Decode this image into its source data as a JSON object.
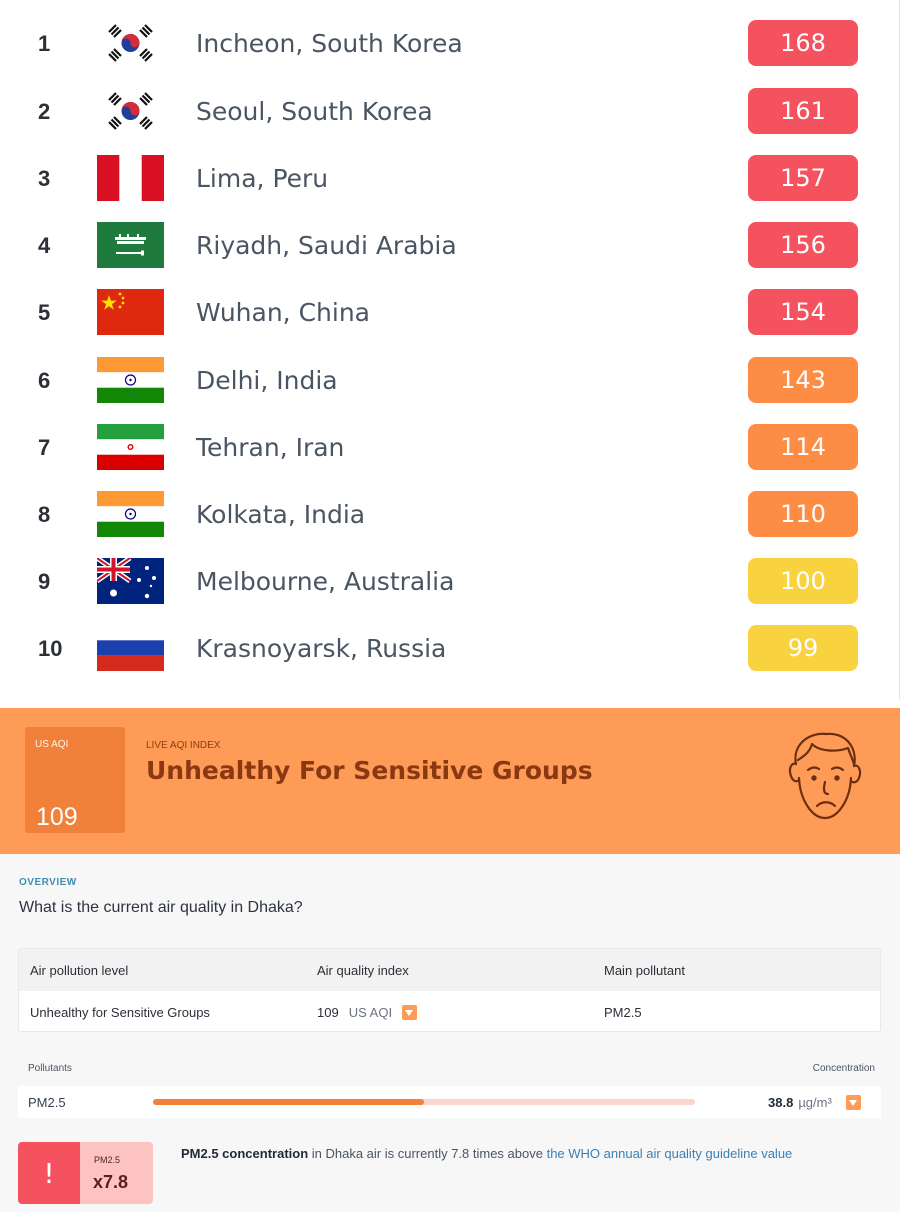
{
  "ranking": [
    {
      "rank": "1",
      "city": "Incheon, South Korea",
      "aqi": "168",
      "flag": "south-korea-flag",
      "color": "#f5525f"
    },
    {
      "rank": "2",
      "city": "Seoul, South Korea",
      "aqi": "161",
      "flag": "south-korea-flag",
      "color": "#f5525f"
    },
    {
      "rank": "3",
      "city": "Lima, Peru",
      "aqi": "157",
      "flag": "peru-flag",
      "color": "#f5525f"
    },
    {
      "rank": "4",
      "city": "Riyadh, Saudi Arabia",
      "aqi": "156",
      "flag": "saudi-arabia-flag",
      "color": "#f5525f"
    },
    {
      "rank": "5",
      "city": "Wuhan, China",
      "aqi": "154",
      "flag": "china-flag",
      "color": "#f5525f"
    },
    {
      "rank": "6",
      "city": "Delhi, India",
      "aqi": "143",
      "flag": "india-flag",
      "color": "#fd8c44"
    },
    {
      "rank": "7",
      "city": "Tehran, Iran",
      "aqi": "114",
      "flag": "iran-flag",
      "color": "#fd8c44"
    },
    {
      "rank": "8",
      "city": "Kolkata, India",
      "aqi": "110",
      "flag": "india-flag",
      "color": "#fd8c44"
    },
    {
      "rank": "9",
      "city": "Melbourne, Australia",
      "aqi": "100",
      "flag": "australia-flag",
      "color": "#f9d33f"
    },
    {
      "rank": "10",
      "city": "Krasnoyarsk, Russia",
      "aqi": "99",
      "flag": "russia-flag",
      "color": "#f9d33f"
    }
  ],
  "banner": {
    "aqi_label": "US AQI",
    "aqi_value": "109",
    "live_label": "LIVE AQI INDEX",
    "status": "Unhealthy For Sensitive Groups",
    "face_icon": "sad-face-icon",
    "color": "#fe9b57"
  },
  "overview": {
    "tag": "OVERVIEW",
    "question": "What is the current air quality in Dhaka?",
    "table": {
      "headers": [
        "Air pollution level",
        "Air quality index",
        "Main pollutant"
      ],
      "level": "Unhealthy for Sensitive Groups",
      "aqi_value": "109",
      "aqi_unit": "US AQI",
      "pollutant": "PM2.5"
    },
    "pollutants_label": "Pollutants",
    "concentration_label": "Concentration",
    "pollutant_row": {
      "name": "PM2.5",
      "value": "38.8",
      "unit": "µg/m³",
      "level_fraction": 0.5
    },
    "alert": {
      "pollutant": "PM2.5",
      "multiplier": "x7.8",
      "text_strong": "PM2.5 concentration",
      "text_mid": " in Dhaka air is currently 7.8 times above ",
      "text_link": "the WHO annual air quality guideline value"
    }
  }
}
